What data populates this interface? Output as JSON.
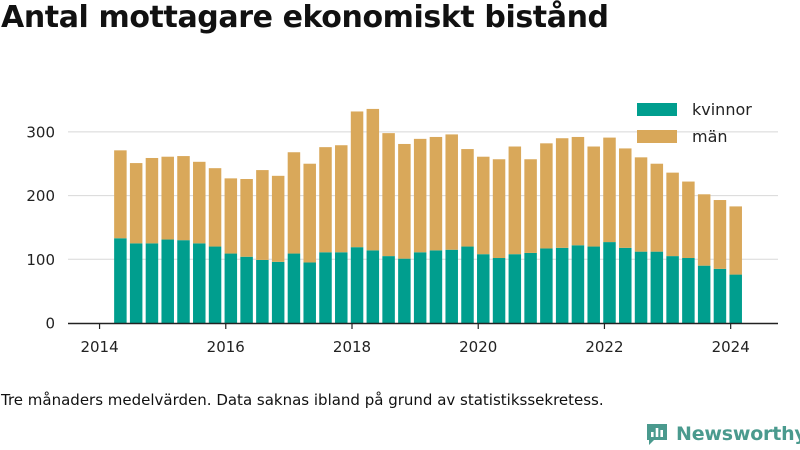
{
  "title": "Antal mottagare ekonomiskt bistånd",
  "footnote": "Tre månaders medelvärden. Data saknas ibland på grund av statistikssekretess.",
  "brand": {
    "name": "Newsworthy"
  },
  "colors": {
    "kvinnor": "#009e8e",
    "man": "#d9a85a",
    "axis": "#222222",
    "grid": "#d8d8d8",
    "brand": "#4a9a8e"
  },
  "chart_data": {
    "type": "bar",
    "stacked": true,
    "title": "Antal mottagare ekonomiskt bistånd",
    "xlabel": "",
    "ylabel": "",
    "ylim": [
      0,
      350
    ],
    "xlim": [
      2013.5,
      2024.75
    ],
    "yticks": [
      0,
      100,
      200,
      300
    ],
    "xticks": [
      2014,
      2016,
      2018,
      2020,
      2022,
      2024
    ],
    "grid": true,
    "legend_position": "top-right",
    "x": [
      2014.33,
      2014.58,
      2014.83,
      2015.08,
      2015.33,
      2015.58,
      2015.83,
      2016.08,
      2016.33,
      2016.58,
      2016.83,
      2017.08,
      2017.33,
      2017.58,
      2017.83,
      2018.08,
      2018.33,
      2018.58,
      2018.83,
      2019.08,
      2019.33,
      2019.58,
      2019.83,
      2020.08,
      2020.33,
      2020.58,
      2020.83,
      2021.08,
      2021.33,
      2021.58,
      2021.83,
      2022.08,
      2022.33,
      2022.58,
      2022.83,
      2023.08,
      2023.33,
      2023.58,
      2023.83,
      2024.08
    ],
    "series": [
      {
        "name": "kvinnor",
        "values": [
          133,
          125,
          125,
          131,
          130,
          125,
          120,
          109,
          104,
          99,
          96,
          109,
          95,
          111,
          111,
          119,
          114,
          105,
          101,
          111,
          114,
          115,
          120,
          108,
          102,
          108,
          110,
          117,
          118,
          122,
          120,
          127,
          118,
          112,
          112,
          105,
          102,
          90,
          85,
          76
        ]
      },
      {
        "name": "män",
        "values": [
          138,
          126,
          134,
          130,
          132,
          128,
          123,
          118,
          122,
          141,
          135,
          159,
          155,
          165,
          168,
          213,
          222,
          193,
          180,
          178,
          178,
          181,
          153,
          153,
          155,
          169,
          147,
          165,
          172,
          170,
          157,
          164,
          156,
          148,
          138,
          131,
          120,
          112,
          108,
          107
        ]
      }
    ]
  }
}
